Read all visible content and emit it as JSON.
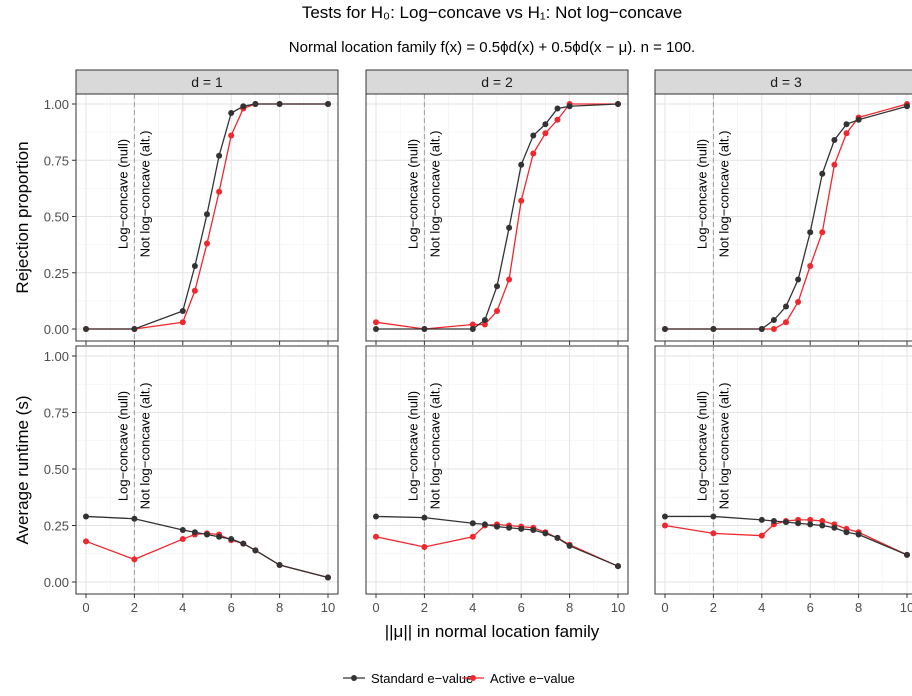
{
  "title": "Tests for H₀: Log−concave vs H₁: Not log−concave",
  "subtitle": "Normal location family f(x) = 0.5ϕd(x) + 0.5ϕd(x − μ). n = 100.",
  "xlabel": "||μ|| in normal location family",
  "legend": {
    "items": [
      {
        "label": "Standard e−value",
        "color": "#333333"
      },
      {
        "label": "Active e−value",
        "color": "#f0282e"
      }
    ]
  },
  "annotations": {
    "null_label": "Log−concave (null)",
    "alt_label": "Not log−concave (alt.)",
    "threshold_x": 2
  },
  "chart_data": {
    "type": "line",
    "xlim": [
      0,
      10
    ],
    "xticks": [
      0,
      2,
      4,
      6,
      8,
      10
    ],
    "facets": [
      "d = 1",
      "d = 2",
      "d = 3"
    ],
    "rows": [
      {
        "ylabel": "Rejection proportion",
        "ylim": [
          0,
          1
        ],
        "yticks": [
          "0.00",
          "0.25",
          "0.50",
          "0.75",
          "1.00"
        ],
        "panels": [
          {
            "x": [
              0,
              2,
              4,
              4.5,
              5,
              5.5,
              6,
              6.5,
              7,
              8,
              10
            ],
            "series": [
              {
                "name": "Standard e−value",
                "values": [
                  0,
                  0,
                  0.08,
                  0.28,
                  0.51,
                  0.77,
                  0.96,
                  0.99,
                  1.0,
                  1.0,
                  1.0
                ]
              },
              {
                "name": "Active e−value",
                "values": [
                  0,
                  0,
                  0.03,
                  0.17,
                  0.38,
                  0.61,
                  0.86,
                  0.98,
                  1.0,
                  1.0,
                  1.0
                ]
              }
            ]
          },
          {
            "x": [
              0,
              2,
              4,
              4.5,
              5,
              5.5,
              6,
              6.5,
              7,
              7.5,
              8,
              10
            ],
            "series": [
              {
                "name": "Standard e−value",
                "values": [
                  0,
                  0,
                  0,
                  0.04,
                  0.19,
                  0.45,
                  0.73,
                  0.86,
                  0.91,
                  0.98,
                  0.99,
                  1.0
                ]
              },
              {
                "name": "Active e−value",
                "values": [
                  0.03,
                  0,
                  0.02,
                  0.02,
                  0.08,
                  0.22,
                  0.57,
                  0.78,
                  0.87,
                  0.93,
                  1.0,
                  1.0
                ]
              }
            ]
          },
          {
            "x": [
              0,
              2,
              4,
              4.5,
              5,
              5.5,
              6,
              6.5,
              7,
              7.5,
              8,
              10
            ],
            "series": [
              {
                "name": "Standard e−value",
                "values": [
                  0,
                  0,
                  0,
                  0.04,
                  0.1,
                  0.22,
                  0.43,
                  0.69,
                  0.84,
                  0.91,
                  0.93,
                  0.99
                ]
              },
              {
                "name": "Active e−value",
                "values": [
                  0,
                  0,
                  0,
                  0,
                  0.03,
                  0.12,
                  0.28,
                  0.43,
                  0.73,
                  0.87,
                  0.94,
                  1.0
                ]
              }
            ]
          }
        ]
      },
      {
        "ylabel": "Average runtime (s)",
        "ylim": [
          0,
          1
        ],
        "yticks": [
          "0.00",
          "0.25",
          "0.50",
          "0.75",
          "1.00"
        ],
        "panels": [
          {
            "x": [
              0,
              2,
              4,
              4.5,
              5,
              5.5,
              6,
              6.5,
              7,
              8,
              10
            ],
            "series": [
              {
                "name": "Standard e−value",
                "values": [
                  0.29,
                  0.28,
                  0.23,
                  0.22,
                  0.21,
                  0.2,
                  0.19,
                  0.17,
                  0.14,
                  0.075,
                  0.02
                ]
              },
              {
                "name": "Active e−value",
                "values": [
                  0.18,
                  0.1,
                  0.19,
                  0.21,
                  0.215,
                  0.21,
                  0.185,
                  0.17,
                  0.14,
                  0.075,
                  0.02
                ]
              }
            ]
          },
          {
            "x": [
              0,
              2,
              4,
              4.5,
              5,
              5.5,
              6,
              6.5,
              7,
              7.5,
              8,
              10
            ],
            "series": [
              {
                "name": "Standard e−value",
                "values": [
                  0.29,
                  0.285,
                  0.26,
                  0.255,
                  0.245,
                  0.24,
                  0.235,
                  0.23,
                  0.215,
                  0.195,
                  0.16,
                  0.07
                ]
              },
              {
                "name": "Active e−value",
                "values": [
                  0.2,
                  0.155,
                  0.2,
                  0.25,
                  0.255,
                  0.25,
                  0.245,
                  0.24,
                  0.22,
                  0.195,
                  0.165,
                  0.07
                ]
              }
            ]
          },
          {
            "x": [
              0,
              2,
              4,
              4.5,
              5,
              5.5,
              6,
              6.5,
              7,
              7.5,
              8,
              10
            ],
            "series": [
              {
                "name": "Standard e−value",
                "values": [
                  0.29,
                  0.29,
                  0.275,
                  0.27,
                  0.265,
                  0.26,
                  0.255,
                  0.25,
                  0.24,
                  0.22,
                  0.21,
                  0.12
                ]
              },
              {
                "name": "Active e−value",
                "values": [
                  0.25,
                  0.215,
                  0.205,
                  0.255,
                  0.27,
                  0.275,
                  0.275,
                  0.27,
                  0.255,
                  0.235,
                  0.22,
                  0.12
                ]
              }
            ]
          }
        ]
      }
    ]
  }
}
